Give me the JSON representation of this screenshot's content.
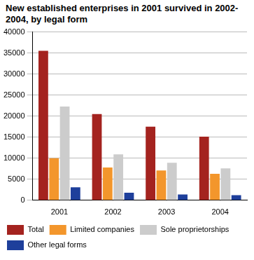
{
  "chart_data": {
    "type": "bar",
    "title": "New established enterprises in 2001 survived in 2002-2004, by legal form",
    "categories": [
      "2001",
      "2002",
      "2003",
      "2004"
    ],
    "series": [
      {
        "name": "Total",
        "color": "#a4231f",
        "values": [
          35500,
          20500,
          17500,
          15100
        ]
      },
      {
        "name": "Limited companies",
        "color": "#f3962c",
        "values": [
          10000,
          7800,
          7100,
          6300
        ]
      },
      {
        "name": "Sole proprietorships",
        "color": "#cccccc",
        "values": [
          22300,
          10900,
          8900,
          7600
        ]
      },
      {
        "name": "Other legal forms",
        "color": "#1e3f9b",
        "values": [
          3100,
          1800,
          1400,
          1200
        ]
      }
    ],
    "ylim": [
      0,
      40000
    ],
    "yticks": [
      0,
      5000,
      10000,
      15000,
      20000,
      25000,
      30000,
      35000,
      40000
    ],
    "grid": true,
    "legend": "bottom"
  }
}
